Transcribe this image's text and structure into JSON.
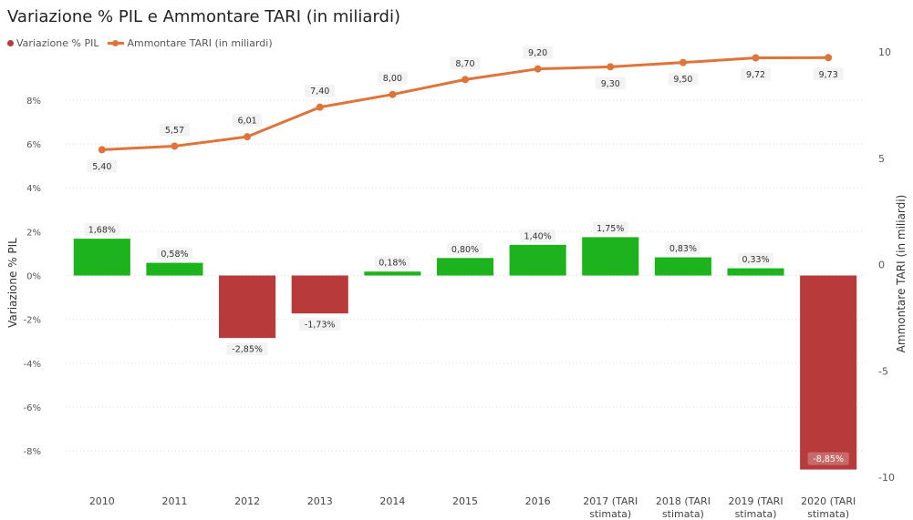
{
  "chart_data": {
    "type": "bar+line",
    "title": "Variazione % PIL e Ammontare TARI (in miliardi)",
    "categories": [
      "2010",
      "2011",
      "2012",
      "2013",
      "2014",
      "2015",
      "2016",
      "2017 (TARI stimata)",
      "2018 (TARI stimata)",
      "2019 (TARI stimata)",
      "2020 (TARI stimata)"
    ],
    "series": [
      {
        "name": "Variazione % PIL",
        "type": "bar",
        "axis": "left",
        "values": [
          1.68,
          0.58,
          -2.85,
          -1.73,
          0.18,
          0.8,
          1.4,
          1.75,
          0.83,
          0.33,
          -8.85
        ],
        "labels": [
          "1,68%",
          "0,58%",
          "-2,85%",
          "-1,73%",
          "0,18%",
          "0,80%",
          "1,40%",
          "1,75%",
          "0,83%",
          "0,33%",
          "-8,85%"
        ],
        "color_positive": "#1db31d",
        "color_negative": "#b83a3a"
      },
      {
        "name": "Ammontare TARI (in miliardi)",
        "type": "line",
        "axis": "right",
        "values": [
          5.4,
          5.57,
          6.01,
          7.4,
          8.0,
          8.7,
          9.2,
          9.3,
          9.5,
          9.72,
          9.73
        ],
        "labels": [
          "5,40",
          "5,57",
          "6,01",
          "7,40",
          "8,00",
          "8,70",
          "9,20",
          "9,30",
          "9,50",
          "9,72",
          "9,73"
        ],
        "color": "#e0733a"
      }
    ],
    "y_left": {
      "label": "Variazione % PIL",
      "ylim": [
        -9.2,
        10.2
      ],
      "ticks": [
        8,
        6,
        4,
        2,
        0,
        -2,
        -4,
        -6,
        -8
      ],
      "tick_labels": [
        "8%",
        "6%",
        "4%",
        "2%",
        "0%",
        "-2%",
        "-4%",
        "-6%",
        "-8%"
      ]
    },
    "y_right": {
      "label": "Ammontare TARI (in miliardi)",
      "ylim": [
        -10,
        10
      ],
      "ticks": [
        10,
        5,
        0,
        -5,
        -10
      ],
      "tick_labels": [
        "10",
        "5",
        "0",
        "-5",
        "-10"
      ]
    },
    "grid": true,
    "legend_position": "top-left"
  }
}
